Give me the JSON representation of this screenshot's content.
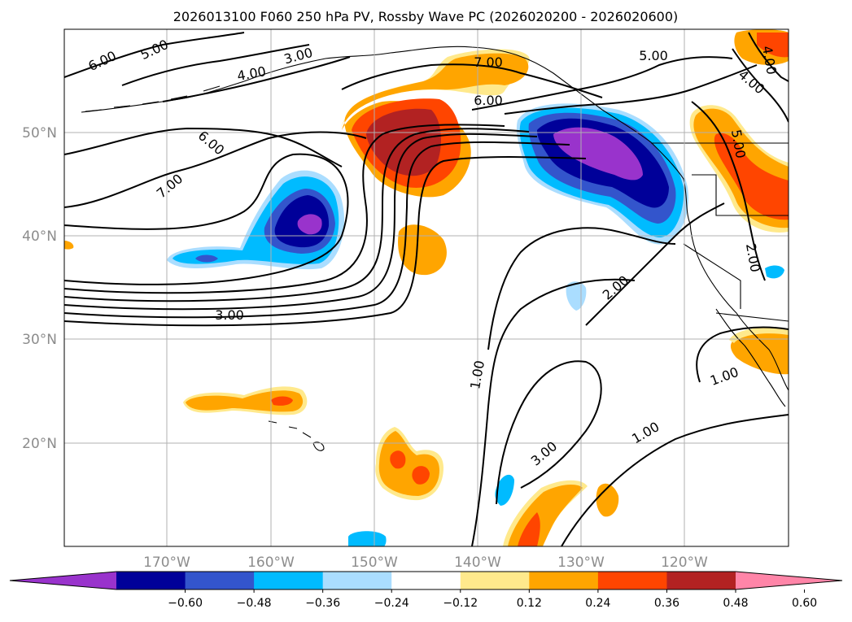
{
  "title": "2026013100 F060 250 hPa PV, Rossby Wave PC (2026020200 - 2026020600)",
  "map": {
    "lat_labels": [
      "50°N",
      "40°N",
      "30°N",
      "20°N"
    ],
    "lon_labels": [
      "170°W",
      "160°W",
      "150°W",
      "140°W",
      "130°W",
      "120°W"
    ],
    "contour_labels": [
      "6.00",
      "5.00",
      "3.00",
      "4.00",
      "7.00",
      "6.00",
      "5.00",
      "6.00",
      "7.00",
      "4.00",
      "4.00",
      "5.00",
      "3.00",
      "2.00",
      "2.00",
      "1.00",
      "1.00",
      "3.00",
      "1.00"
    ]
  },
  "colorbar": {
    "ticks": [
      "−0.60",
      "−0.48",
      "−0.36",
      "−0.24",
      "−0.12",
      "0.12",
      "0.24",
      "0.36",
      "0.48",
      "0.60"
    ],
    "colors": [
      "#9933cc",
      "#000099",
      "#3355cc",
      "#00bbff",
      "#aaddff",
      "#ffffff",
      "#ffe98c",
      "#ffa500",
      "#ff4500",
      "#b22222",
      "#ff85a8"
    ]
  }
}
